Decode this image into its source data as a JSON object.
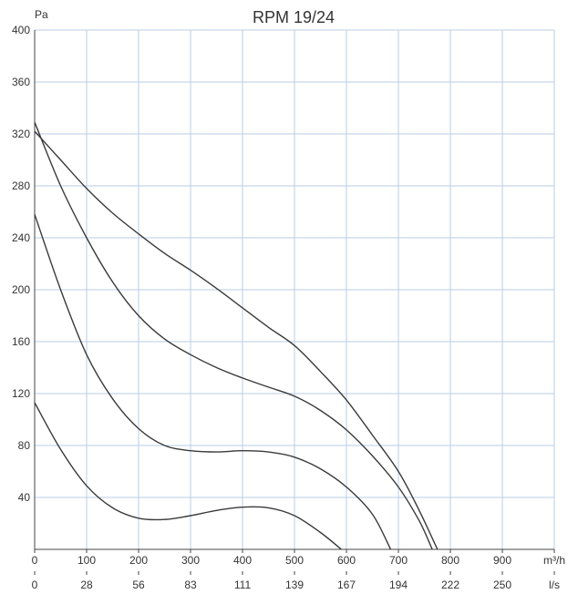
{
  "chart_data": {
    "type": "line",
    "title": "RPM 19/24",
    "ylabel": "Pa",
    "xlabel": "m³/h",
    "x2label": "l/s",
    "ylim": [
      0,
      400
    ],
    "xlim": [
      0,
      1000
    ],
    "yticks": [
      40,
      80,
      120,
      160,
      200,
      240,
      280,
      320,
      360,
      400
    ],
    "yticklabels": [
      "40",
      "80",
      "120",
      "160",
      "200",
      "240",
      "280",
      "320",
      "360",
      "400"
    ],
    "xticks": [
      0,
      100,
      200,
      300,
      400,
      500,
      600,
      700,
      800,
      900
    ],
    "xticklabels": [
      "0",
      "100",
      "200",
      "300",
      "400",
      "500",
      "600",
      "700",
      "800",
      "900"
    ],
    "x2ticklabels": [
      "0",
      "28",
      "56",
      "83",
      "111",
      "139",
      "167",
      "194",
      "222",
      "250"
    ],
    "grid": true,
    "colors": {
      "grid": "#b8cde6",
      "axis": "#444444",
      "curve": "#3a3a3a",
      "text": "#333333"
    },
    "series": [
      {
        "points": [
          [
            0,
            322
          ],
          [
            50,
            300
          ],
          [
            100,
            278
          ],
          [
            150,
            259
          ],
          [
            200,
            243
          ],
          [
            250,
            228
          ],
          [
            300,
            215
          ],
          [
            350,
            201
          ],
          [
            400,
            186
          ],
          [
            450,
            171
          ],
          [
            500,
            157
          ],
          [
            550,
            137
          ],
          [
            600,
            115
          ],
          [
            650,
            88
          ],
          [
            700,
            60
          ],
          [
            740,
            30
          ],
          [
            775,
            0
          ]
        ]
      },
      {
        "points": [
          [
            0,
            329
          ],
          [
            50,
            280
          ],
          [
            100,
            240
          ],
          [
            150,
            206
          ],
          [
            200,
            180
          ],
          [
            250,
            162
          ],
          [
            300,
            150
          ],
          [
            350,
            140
          ],
          [
            400,
            132
          ],
          [
            450,
            125
          ],
          [
            500,
            118
          ],
          [
            550,
            107
          ],
          [
            600,
            92
          ],
          [
            650,
            72
          ],
          [
            700,
            48
          ],
          [
            740,
            22
          ],
          [
            765,
            0
          ]
        ]
      },
      {
        "points": [
          [
            0,
            258
          ],
          [
            50,
            200
          ],
          [
            100,
            150
          ],
          [
            150,
            116
          ],
          [
            200,
            93
          ],
          [
            250,
            80
          ],
          [
            300,
            76
          ],
          [
            350,
            75
          ],
          [
            400,
            76
          ],
          [
            450,
            75
          ],
          [
            500,
            71
          ],
          [
            550,
            62
          ],
          [
            600,
            48
          ],
          [
            650,
            27
          ],
          [
            685,
            0
          ]
        ]
      },
      {
        "points": [
          [
            0,
            113
          ],
          [
            50,
            77
          ],
          [
            100,
            49
          ],
          [
            150,
            32
          ],
          [
            200,
            24
          ],
          [
            250,
            23
          ],
          [
            300,
            26
          ],
          [
            350,
            30
          ],
          [
            400,
            32.5
          ],
          [
            450,
            32
          ],
          [
            500,
            26
          ],
          [
            550,
            13
          ],
          [
            590,
            0
          ]
        ]
      }
    ]
  }
}
